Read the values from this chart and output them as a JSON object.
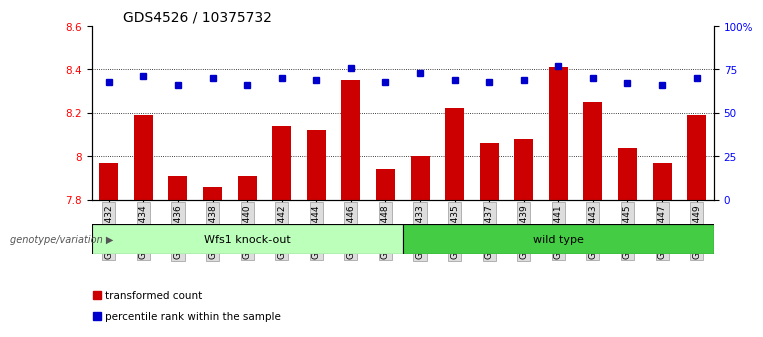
{
  "title": "GDS4526 / 10375732",
  "categories": [
    "GSM825432",
    "GSM825434",
    "GSM825436",
    "GSM825438",
    "GSM825440",
    "GSM825442",
    "GSM825444",
    "GSM825446",
    "GSM825448",
    "GSM825433",
    "GSM825435",
    "GSM825437",
    "GSM825439",
    "GSM825441",
    "GSM825443",
    "GSM825445",
    "GSM825447",
    "GSM825449"
  ],
  "bar_values": [
    7.97,
    8.19,
    7.91,
    7.86,
    7.91,
    8.14,
    8.12,
    8.35,
    7.94,
    8.0,
    8.22,
    8.06,
    8.08,
    8.41,
    8.25,
    8.04,
    7.97,
    8.19
  ],
  "dot_values": [
    68,
    71,
    66,
    70,
    66,
    70,
    69,
    76,
    68,
    73,
    69,
    68,
    69,
    77,
    70,
    67,
    66,
    70
  ],
  "bar_color": "#cc0000",
  "dot_color": "#0000cc",
  "ylim_left": [
    7.8,
    8.6
  ],
  "ylim_right": [
    0,
    100
  ],
  "yticks_left": [
    7.8,
    8.0,
    8.2,
    8.4,
    8.6
  ],
  "ytick_labels_left": [
    "7.8",
    "8",
    "8.2",
    "8.4",
    "8.6"
  ],
  "yticks_right": [
    0,
    25,
    50,
    75,
    100
  ],
  "ytick_labels_right": [
    "0",
    "25",
    "50",
    "75",
    "100%"
  ],
  "group1_label": "Wfs1 knock-out",
  "group2_label": "wild type",
  "group1_count": 9,
  "group2_count": 9,
  "group1_color": "#bbffbb",
  "group2_color": "#44cc44",
  "group_header": "genotype/variation",
  "legend_bar": "transformed count",
  "legend_dot": "percentile rank within the sample",
  "dotted_grid_values": [
    8.0,
    8.2,
    8.4
  ],
  "background_color": "#ffffff",
  "bar_bottom": 7.8,
  "bar_width": 0.55,
  "tick_label_fontsize": 7.5,
  "title_fontsize": 10,
  "xtick_fontsize": 6.5
}
